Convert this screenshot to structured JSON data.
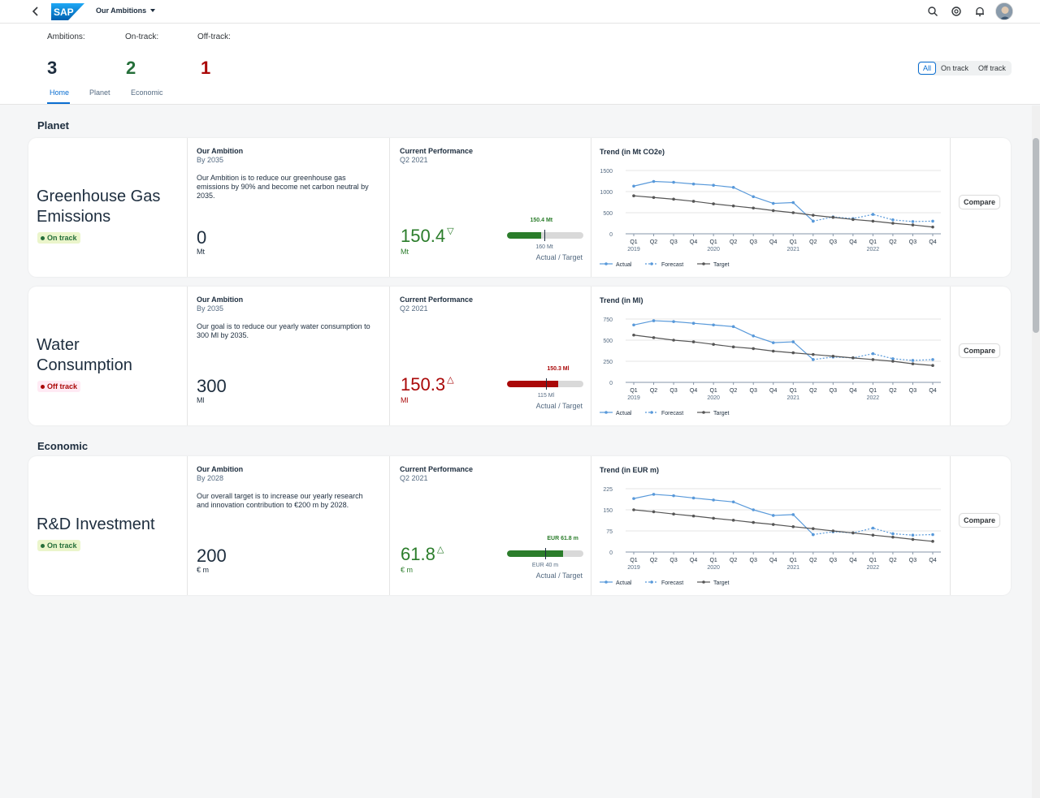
{
  "shell": {
    "title": "Our Ambitions",
    "icons": [
      "chevron-left-icon",
      "search-icon",
      "at-sign-icon",
      "bell-icon"
    ],
    "logo_text": "SAP"
  },
  "header": {
    "kpis": [
      {
        "label": "Ambitions:",
        "value": "3",
        "color": "#1d2d3e"
      },
      {
        "label": "On-track:",
        "value": "2",
        "color": "#256f3a"
      },
      {
        "label": "Off-track:",
        "value": "1",
        "color": "#aa0808"
      }
    ],
    "tabs": [
      "Home",
      "Planet",
      "Economic"
    ],
    "active_tab": "Home",
    "filter": {
      "options": [
        "All",
        "On track",
        "Off track"
      ],
      "selected": "All"
    }
  },
  "sections": [
    {
      "title": "Planet"
    },
    {
      "title": "Economic"
    }
  ],
  "cards": [
    {
      "title_lines": [
        "Greenhouse Gas",
        "Emissions"
      ],
      "status": "On track",
      "ambition_heading": "Our Ambition",
      "ambition_by": "By 2035",
      "ambition_desc": "Our Ambition is to reduce our greenhouse gas emissions by 90% and become net carbon neutral by 2035.",
      "ambition_value": "0",
      "ambition_unit": "Mt",
      "perf_heading": "Current Performance",
      "perf_period": "Q2 2021",
      "perf_value": "150.4",
      "perf_trend": "▽",
      "perf_unit": "Mt",
      "perf_color": "#2b7d2b",
      "bullet_actual_label": "150.4 Mt",
      "bullet_target_label": "160 Mt",
      "bullet_actual_fraction": 0.45,
      "bullet_target_fraction": 0.49,
      "actual_target_label": "Actual / Target",
      "compare_label": "Compare"
    },
    {
      "title_lines": [
        "Water",
        "Consumption"
      ],
      "status": "Off track",
      "ambition_heading": "Our Ambition",
      "ambition_by": "By 2035",
      "ambition_desc": "Our goal is to reduce our yearly water consumption to 300 Ml by 2035.",
      "ambition_value": "300",
      "ambition_unit": "Ml",
      "perf_heading": "Current Performance",
      "perf_period": "Q2 2021",
      "perf_value": "150.3",
      "perf_trend": "△",
      "perf_unit": "Ml",
      "perf_color": "#aa0808",
      "bullet_actual_label": "150.3 Ml",
      "bullet_target_label": "115 Ml",
      "bullet_actual_fraction": 0.67,
      "bullet_target_fraction": 0.51,
      "actual_target_label": "Actual / Target",
      "compare_label": "Compare"
    },
    {
      "title_lines": [
        "R&D Investment"
      ],
      "status": "On track",
      "ambition_heading": "Our Ambition",
      "ambition_by": "By 2028",
      "ambition_desc": "Our overall target is to increase our yearly research and innovation contribution to €200 m by 2028.",
      "ambition_value": "200",
      "ambition_unit": "€ m",
      "perf_heading": "Current Performance",
      "perf_period": "Q2 2021",
      "perf_value": "61.8",
      "perf_trend": "△",
      "perf_unit": "€ m",
      "perf_color": "#2b7d2b",
      "bullet_actual_label": "EUR 61.8 m",
      "bullet_target_label": "EUR 40 m",
      "bullet_actual_fraction": 0.73,
      "bullet_target_fraction": 0.5,
      "actual_target_label": "Actual / Target",
      "compare_label": "Compare"
    }
  ],
  "chart_data": [
    {
      "type": "line",
      "title": "Trend (in Mt CO2e)",
      "categories": [
        "Q1",
        "Q2",
        "Q3",
        "Q4",
        "Q1",
        "Q2",
        "Q3",
        "Q4",
        "Q1",
        "Q2",
        "Q3",
        "Q4",
        "Q1",
        "Q2",
        "Q3",
        "Q4"
      ],
      "years": [
        "2019",
        "2020",
        "2021",
        "2022"
      ],
      "yticks": [
        0,
        500,
        1000,
        1500
      ],
      "ylim": [
        0,
        1500
      ],
      "legend": [
        "Actual",
        "Forecast",
        "Target"
      ],
      "series": [
        {
          "name": "Actual",
          "values": [
            1130,
            1240,
            1220,
            1180,
            1150,
            1100,
            880,
            720,
            740,
            300,
            null,
            null,
            null,
            null,
            null,
            null
          ]
        },
        {
          "name": "Forecast",
          "values": [
            null,
            null,
            null,
            null,
            null,
            null,
            null,
            null,
            null,
            300,
            400,
            360,
            460,
            330,
            290,
            300
          ]
        },
        {
          "name": "Target",
          "values": [
            900,
            860,
            820,
            770,
            710,
            660,
            610,
            550,
            500,
            440,
            390,
            340,
            300,
            250,
            210,
            160
          ]
        }
      ]
    },
    {
      "type": "line",
      "title": "Trend (in Ml)",
      "categories": [
        "Q1",
        "Q2",
        "Q3",
        "Q4",
        "Q1",
        "Q2",
        "Q3",
        "Q4",
        "Q1",
        "Q2",
        "Q3",
        "Q4",
        "Q1",
        "Q2",
        "Q3",
        "Q4"
      ],
      "years": [
        "2019",
        "2020",
        "2021",
        "2022"
      ],
      "yticks": [
        0,
        250,
        500,
        750
      ],
      "ylim": [
        0,
        750
      ],
      "legend": [
        "Actual",
        "Forecast",
        "Target"
      ],
      "series": [
        {
          "name": "Actual",
          "values": [
            680,
            730,
            720,
            700,
            680,
            660,
            550,
            470,
            480,
            270,
            null,
            null,
            null,
            null,
            null,
            null
          ]
        },
        {
          "name": "Forecast",
          "values": [
            null,
            null,
            null,
            null,
            null,
            null,
            null,
            null,
            null,
            270,
            300,
            290,
            340,
            280,
            260,
            270
          ]
        },
        {
          "name": "Target",
          "values": [
            560,
            530,
            500,
            480,
            450,
            420,
            400,
            370,
            350,
            330,
            310,
            290,
            270,
            250,
            220,
            200
          ]
        }
      ]
    },
    {
      "type": "line",
      "title": "Trend (in EUR m)",
      "categories": [
        "Q1",
        "Q2",
        "Q3",
        "Q4",
        "Q1",
        "Q2",
        "Q3",
        "Q4",
        "Q1",
        "Q2",
        "Q3",
        "Q4",
        "Q1",
        "Q2",
        "Q3",
        "Q4"
      ],
      "years": [
        "2019",
        "2020",
        "2021",
        "2022"
      ],
      "yticks": [
        0,
        75,
        150,
        225
      ],
      "ylim": [
        0,
        225
      ],
      "legend": [
        "Actual",
        "Forecast",
        "Target"
      ],
      "series": [
        {
          "name": "Actual",
          "values": [
            190,
            205,
            200,
            192,
            185,
            178,
            150,
            130,
            133,
            62,
            null,
            null,
            null,
            null,
            null,
            null
          ]
        },
        {
          "name": "Forecast",
          "values": [
            null,
            null,
            null,
            null,
            null,
            null,
            null,
            null,
            null,
            62,
            72,
            68,
            85,
            65,
            60,
            62
          ]
        },
        {
          "name": "Target",
          "values": [
            150,
            143,
            135,
            128,
            120,
            113,
            105,
            98,
            90,
            83,
            75,
            68,
            60,
            53,
            45,
            38
          ]
        }
      ]
    }
  ]
}
